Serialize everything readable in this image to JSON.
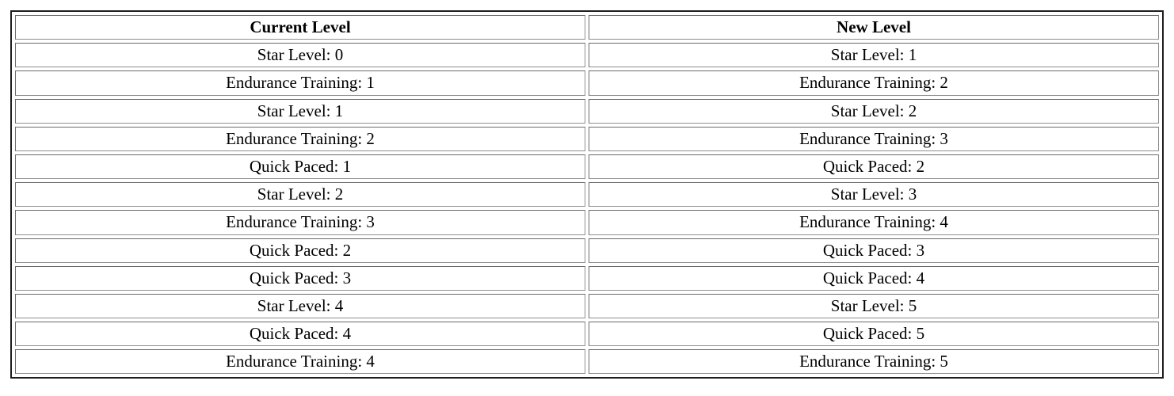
{
  "table": {
    "headers": [
      "Current Level",
      "New Level"
    ],
    "rows": [
      [
        "Star Level: 0",
        "Star Level: 1"
      ],
      [
        "Endurance Training: 1",
        "Endurance Training: 2"
      ],
      [
        "Star Level: 1",
        "Star Level: 2"
      ],
      [
        "Endurance Training: 2",
        "Endurance Training: 3"
      ],
      [
        "Quick Paced: 1",
        "Quick Paced: 2"
      ],
      [
        "Star Level: 2",
        "Star Level: 3"
      ],
      [
        "Endurance Training: 3",
        "Endurance Training: 4"
      ],
      [
        "Quick Paced: 2",
        "Quick Paced: 3"
      ],
      [
        "Quick Paced: 3",
        "Quick Paced: 4"
      ],
      [
        "Star Level: 4",
        "Star Level: 5"
      ],
      [
        "Quick Paced: 4",
        "Quick Paced: 5"
      ],
      [
        "Endurance Training: 4",
        "Endurance Training: 5"
      ]
    ]
  },
  "colors": {
    "text": "#000000",
    "background": "#ffffff",
    "outer_border": "#1d1d1d",
    "cell_border": "#6a6a6a"
  }
}
